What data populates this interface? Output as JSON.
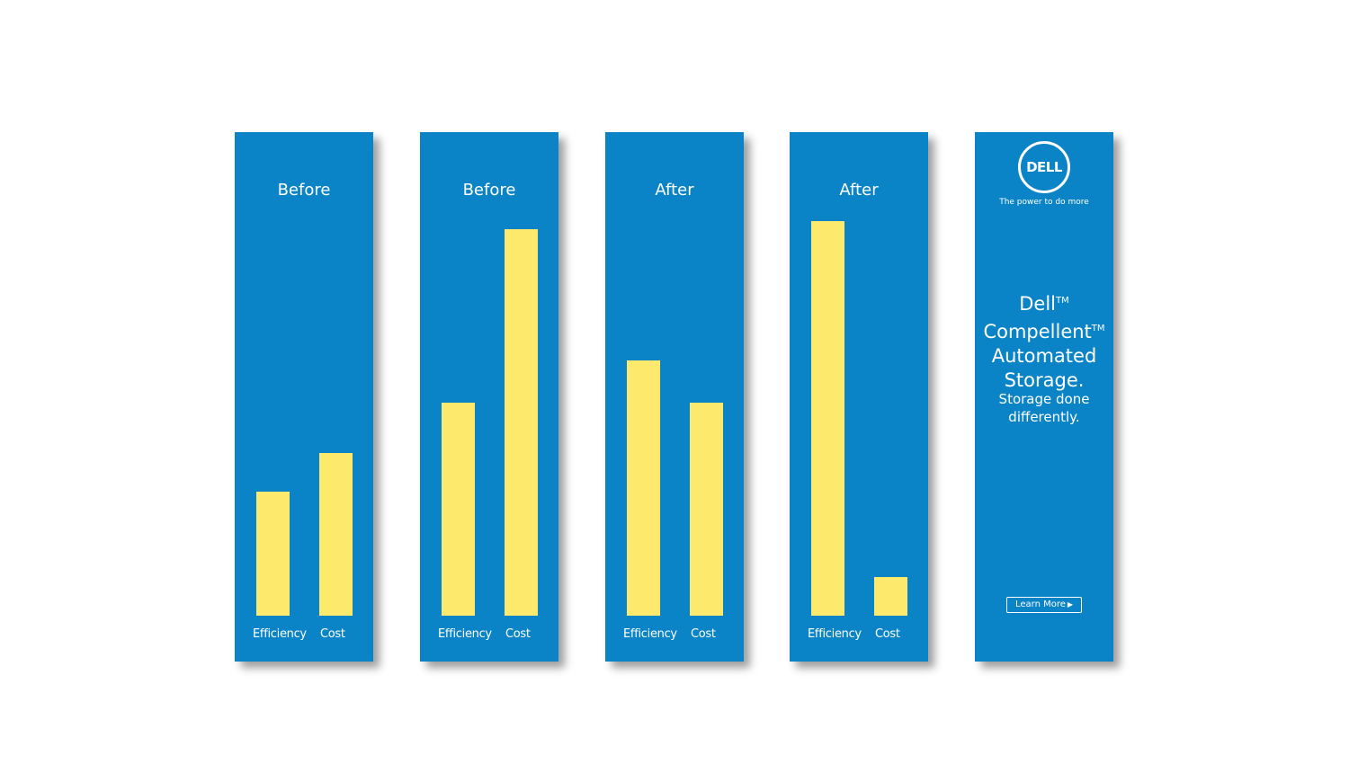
{
  "chart_data": [
    {
      "type": "bar",
      "title": "Before",
      "categories": [
        "Efficiency",
        "Cost"
      ],
      "values": [
        32,
        42
      ],
      "ylim": [
        0,
        100
      ]
    },
    {
      "type": "bar",
      "title": "Before",
      "categories": [
        "Efficiency",
        "Cost"
      ],
      "values": [
        55,
        100
      ],
      "ylim": [
        0,
        100
      ]
    },
    {
      "type": "bar",
      "title": "After",
      "categories": [
        "Efficiency",
        "Cost"
      ],
      "values": [
        66,
        55
      ],
      "ylim": [
        0,
        100
      ]
    },
    {
      "type": "bar",
      "title": "After",
      "categories": [
        "Efficiency",
        "Cost"
      ],
      "values": [
        102,
        10
      ],
      "ylim": [
        0,
        100
      ]
    }
  ],
  "colors": {
    "panel_background": "#0a84c6",
    "bar_fill": "#fde96c",
    "text": "#ffffff"
  },
  "ad": {
    "logo_text": "DELL",
    "tagline": "The power to do more",
    "headline_lines": [
      {
        "text": "Dell",
        "tm": "TM"
      },
      {
        "text": "Compellent",
        "tm": "TM"
      },
      {
        "text": "Automated",
        "tm": ""
      },
      {
        "text": "Storage.",
        "tm": ""
      }
    ],
    "subline_lines": [
      "Storage done",
      "differently."
    ],
    "learn_more_label": "Learn More"
  }
}
